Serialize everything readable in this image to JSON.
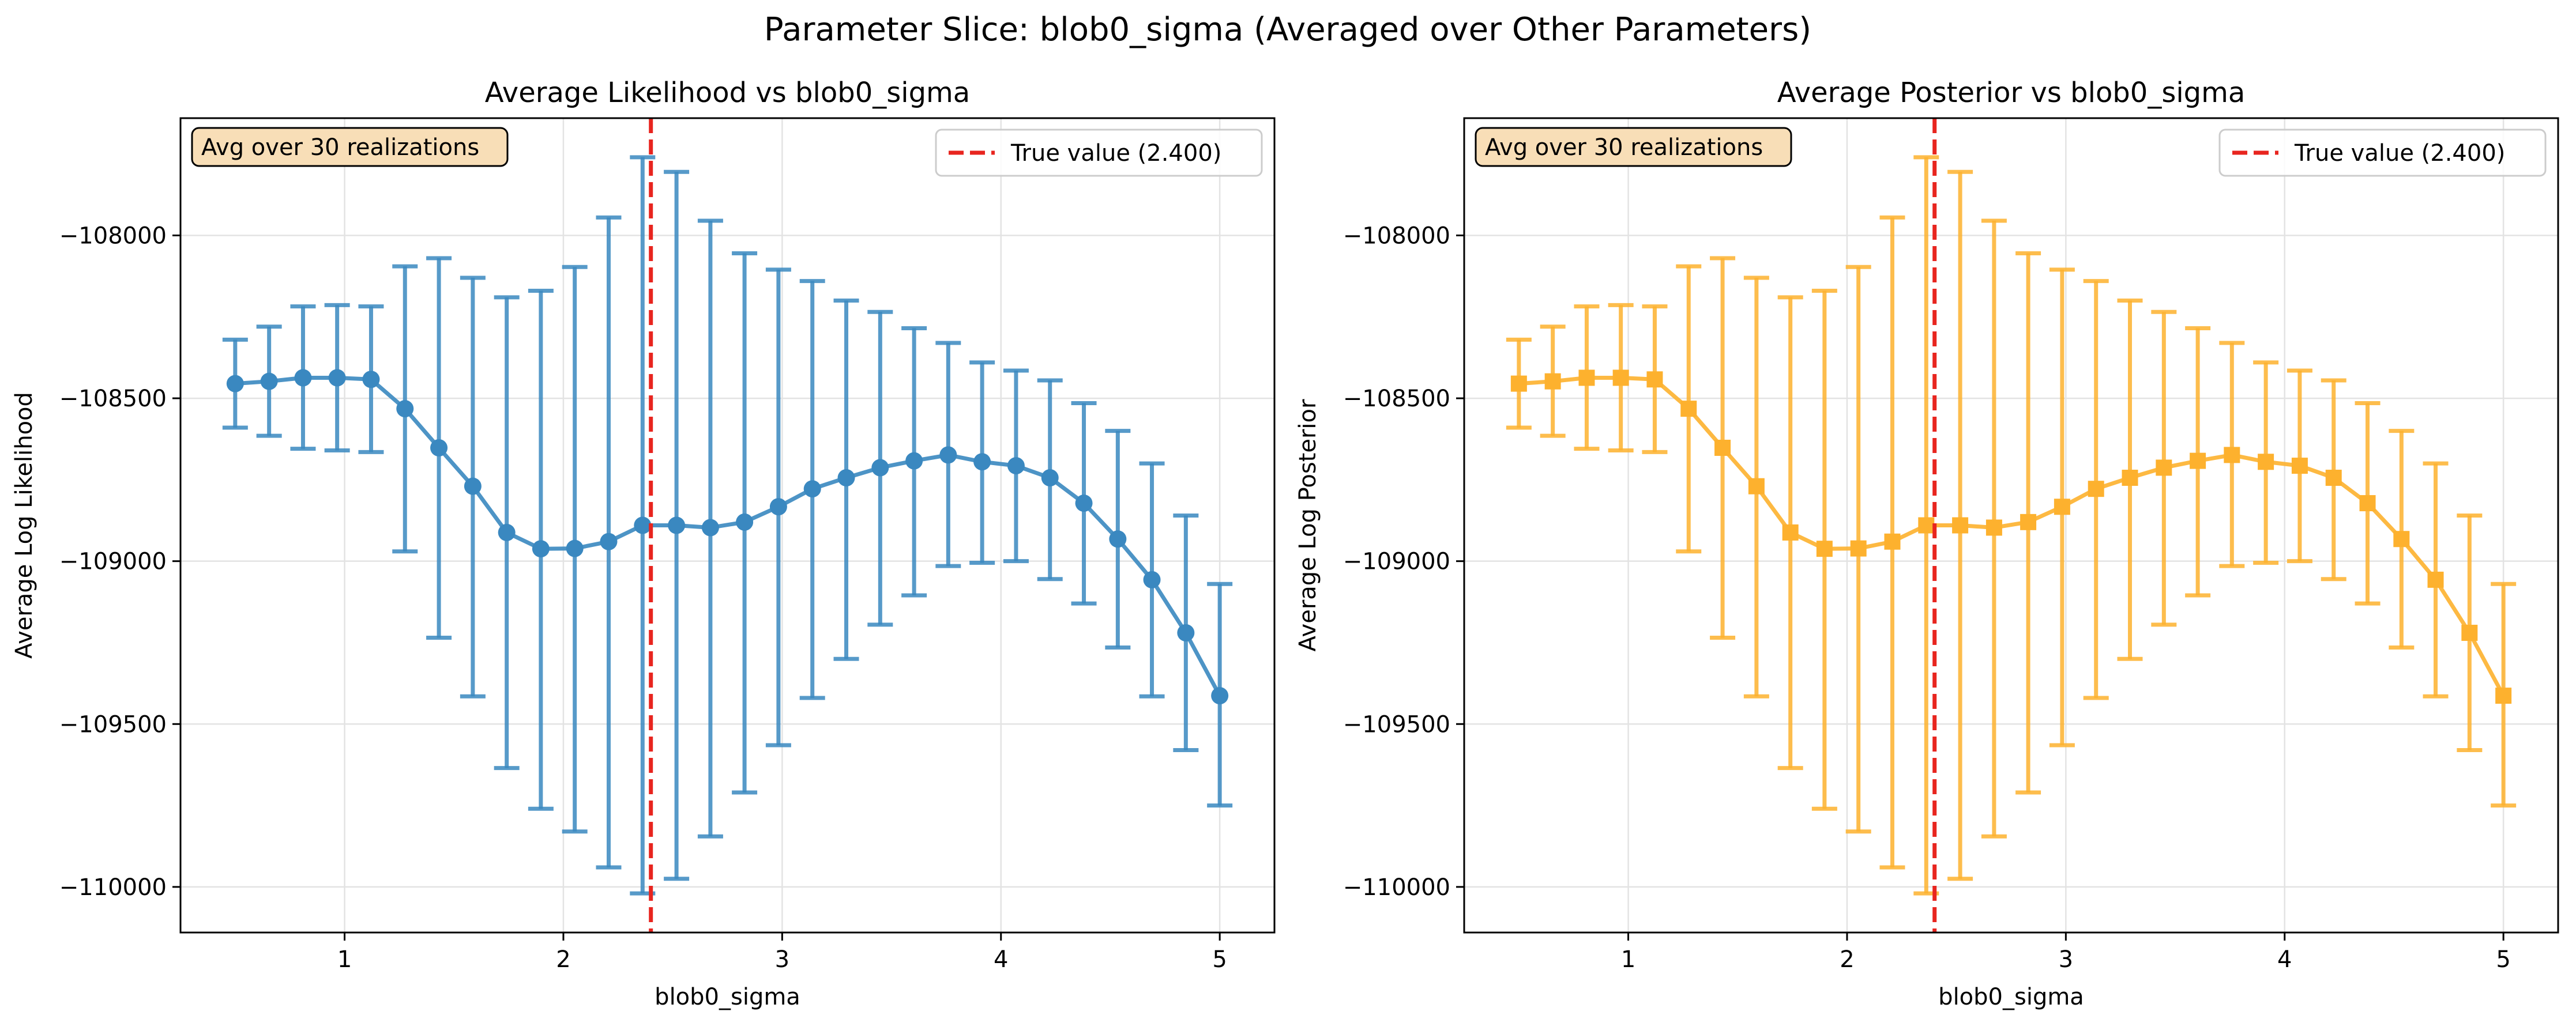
{
  "figure": {
    "suptitle": "Parameter Slice: blob0_sigma (Averaged over Other Parameters)"
  },
  "colors": {
    "likelihood": "#3a88c0",
    "posterior": "#fdb12e",
    "true_line": "#e8251f",
    "annotation_bg": "#f8deb7",
    "grid": "#e3e3e3"
  },
  "chart_data": [
    {
      "type": "line",
      "title": "Average Likelihood vs blob0_sigma",
      "xlabel": "blob0_sigma",
      "ylabel": "Average Log Likelihood",
      "xlim": [
        0.25,
        5.25
      ],
      "ylim": [
        -110140,
        -107640
      ],
      "xticks": [
        1,
        2,
        3,
        4,
        5
      ],
      "xtick_labels": [
        "1",
        "2",
        "3",
        "4",
        "5"
      ],
      "yticks": [
        -110000,
        -109500,
        -109000,
        -108500,
        -108000
      ],
      "ytick_labels": [
        "−110000",
        "−109500",
        "−109000",
        "−108500",
        "−108000"
      ],
      "grid": true,
      "marker": "circle",
      "color_key": "likelihood",
      "annotation": "Avg over 30 realizations",
      "legend": {
        "label": "True value (2.400)",
        "position": "upper right"
      },
      "true_value": 2.4,
      "x": [
        0.5,
        0.655,
        0.81,
        0.966,
        1.121,
        1.276,
        1.431,
        1.586,
        1.741,
        1.897,
        2.052,
        2.207,
        2.362,
        2.517,
        2.672,
        2.828,
        2.983,
        3.138,
        3.293,
        3.448,
        3.603,
        3.759,
        3.914,
        4.069,
        4.224,
        4.379,
        4.534,
        4.69,
        4.845,
        5.0
      ],
      "series": [
        {
          "values": [
            -108455,
            -108448,
            -108437,
            -108437,
            -108442,
            -108532,
            -108652,
            -108770,
            -108912,
            -108962,
            -108961,
            -108940,
            -108890,
            -108890,
            -108897,
            -108880,
            -108833,
            -108778,
            -108744,
            -108713,
            -108692,
            -108674,
            -108695,
            -108707,
            -108744,
            -108822,
            -108932,
            -109057,
            -109220,
            -109413
          ],
          "err_upper": [
            -108320,
            -108280,
            -108218,
            -108214,
            -108218,
            -108095,
            -108070,
            -108130,
            -108190,
            -108170,
            -108097,
            -107945,
            -107760,
            -107805,
            -107955,
            -108055,
            -108105,
            -108140,
            -108200,
            -108235,
            -108285,
            -108330,
            -108390,
            -108415,
            -108445,
            -108515,
            -108600,
            -108700,
            -108860,
            -109070
          ],
          "err_lower": [
            -108590,
            -108615,
            -108655,
            -108660,
            -108665,
            -108970,
            -109235,
            -109415,
            -109635,
            -109760,
            -109830,
            -109940,
            -110020,
            -109975,
            -109845,
            -109710,
            -109565,
            -109420,
            -109300,
            -109195,
            -109105,
            -109015,
            -109005,
            -109000,
            -109055,
            -109130,
            -109265,
            -109415,
            -109580,
            -109750
          ]
        }
      ]
    },
    {
      "type": "line",
      "title": "Average Posterior vs blob0_sigma",
      "xlabel": "blob0_sigma",
      "ylabel": "Average Log Posterior",
      "xlim": [
        0.25,
        5.25
      ],
      "ylim": [
        -110140,
        -107640
      ],
      "xticks": [
        1,
        2,
        3,
        4,
        5
      ],
      "xtick_labels": [
        "1",
        "2",
        "3",
        "4",
        "5"
      ],
      "yticks": [
        -110000,
        -109500,
        -109000,
        -108500,
        -108000
      ],
      "ytick_labels": [
        "−110000",
        "−109500",
        "−109000",
        "−108500",
        "−108000"
      ],
      "grid": true,
      "marker": "square",
      "color_key": "posterior",
      "annotation": "Avg over 30 realizations",
      "legend": {
        "label": "True value (2.400)",
        "position": "upper right"
      },
      "true_value": 2.4,
      "x": [
        0.5,
        0.655,
        0.81,
        0.966,
        1.121,
        1.276,
        1.431,
        1.586,
        1.741,
        1.897,
        2.052,
        2.207,
        2.362,
        2.517,
        2.672,
        2.828,
        2.983,
        3.138,
        3.293,
        3.448,
        3.603,
        3.759,
        3.914,
        4.069,
        4.224,
        4.379,
        4.534,
        4.69,
        4.845,
        5.0
      ],
      "series": [
        {
          "values": [
            -108455,
            -108448,
            -108437,
            -108437,
            -108442,
            -108532,
            -108652,
            -108770,
            -108912,
            -108962,
            -108961,
            -108940,
            -108890,
            -108890,
            -108897,
            -108880,
            -108833,
            -108778,
            -108744,
            -108713,
            -108692,
            -108674,
            -108695,
            -108707,
            -108744,
            -108822,
            -108932,
            -109057,
            -109220,
            -109413
          ],
          "err_upper": [
            -108320,
            -108280,
            -108218,
            -108214,
            -108218,
            -108095,
            -108070,
            -108130,
            -108190,
            -108170,
            -108097,
            -107945,
            -107760,
            -107805,
            -107955,
            -108055,
            -108105,
            -108140,
            -108200,
            -108235,
            -108285,
            -108330,
            -108390,
            -108415,
            -108445,
            -108515,
            -108600,
            -108700,
            -108860,
            -109070
          ],
          "err_lower": [
            -108590,
            -108615,
            -108655,
            -108660,
            -108665,
            -108970,
            -109235,
            -109415,
            -109635,
            -109760,
            -109830,
            -109940,
            -110020,
            -109975,
            -109845,
            -109710,
            -109565,
            -109420,
            -109300,
            -109195,
            -109105,
            -109015,
            -109005,
            -109000,
            -109055,
            -109130,
            -109265,
            -109415,
            -109580,
            -109750
          ]
        }
      ]
    }
  ]
}
